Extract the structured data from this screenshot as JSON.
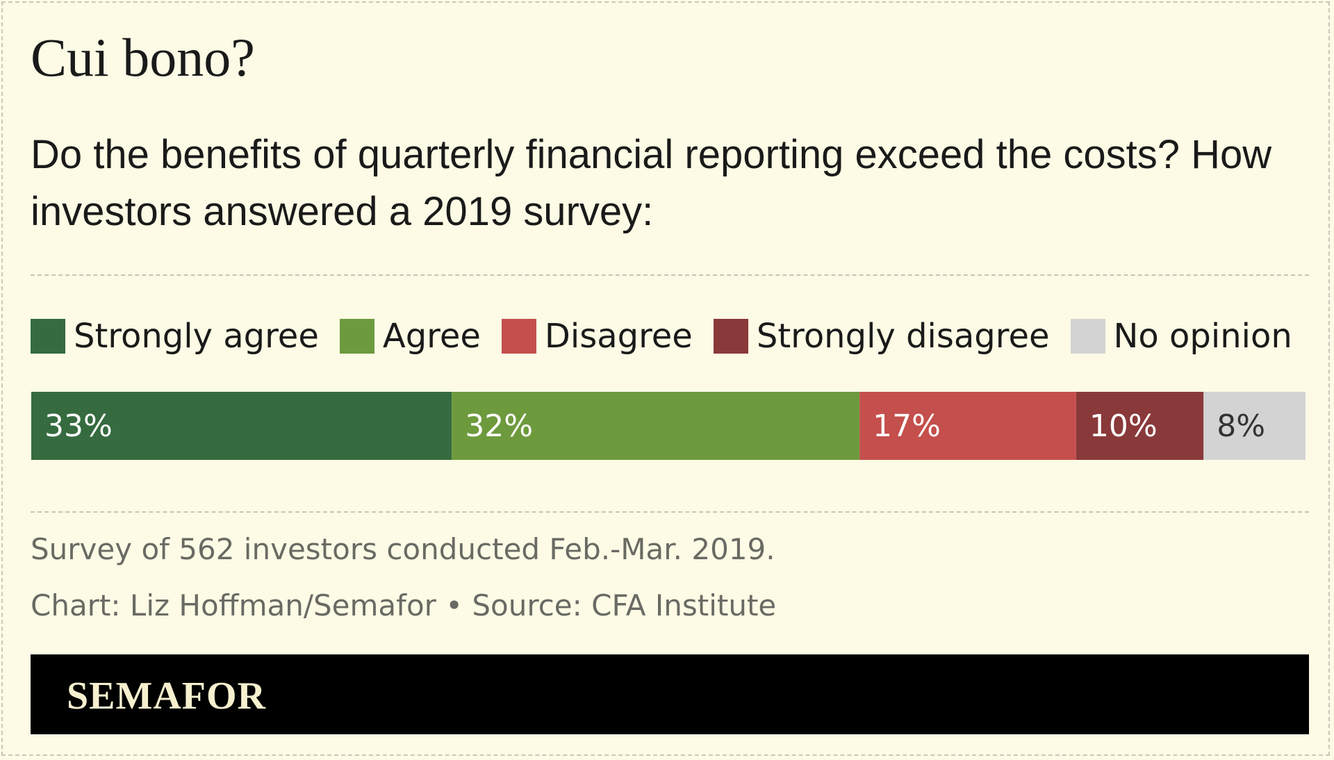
{
  "header": {
    "title": "Cui bono?",
    "subtitle": "Do the benefits of quarterly financial reporting exceed the costs? How investors answered a 2019 survey:"
  },
  "chart_data": {
    "type": "bar",
    "orientation": "horizontal-stacked",
    "categories": [
      "Strongly agree",
      "Agree",
      "Disagree",
      "Strongly disagree",
      "No opinion"
    ],
    "series": [
      {
        "values": [
          33,
          32,
          17,
          10,
          8
        ]
      }
    ],
    "value_labels": [
      "33%",
      "32%",
      "17%",
      "10%",
      "8%"
    ],
    "colors": [
      "#356b3f",
      "#6e9a3e",
      "#c44f4c",
      "#8a393a",
      "#d3d3d3"
    ],
    "label_colors": [
      "#ffffff",
      "#ffffff",
      "#ffffff",
      "#ffffff",
      "#333333"
    ],
    "legend_position": "top",
    "grid": false
  },
  "notes": {
    "survey": "Survey of 562 investors conducted Feb.-Mar. 2019.",
    "credit": "Chart: Liz Hoffman/Semafor • Source: CFA Institute"
  },
  "footer": {
    "logo": "SEMAFOR"
  }
}
